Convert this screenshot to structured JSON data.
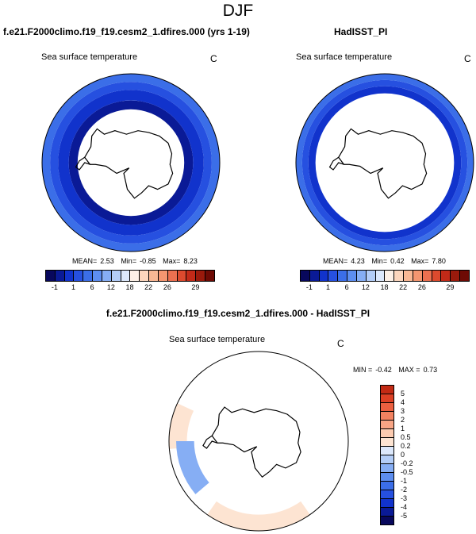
{
  "figure": {
    "season": "DJF",
    "model_title": "f.e21.F2000climo.f19_f19.cesm2_1.dfires.000 (yrs 1-19)",
    "obs_title": "HadISST_PI",
    "diff_title": "f.e21.F2000climo.f19_f19.cesm2_1.dfires.000 - HadISST_PI",
    "variable": "Sea surface temperature",
    "units": "C"
  },
  "stats": {
    "model": {
      "mean_label": "MEAN=",
      "mean": "2.53",
      "min_label": "Min=",
      "min": "-0.85",
      "max_label": "Max=",
      "max": "8.23"
    },
    "obs": {
      "mean_label": "MEAN=",
      "mean": "4.23",
      "min_label": "Min=",
      "min": "0.42",
      "max_label": "Max=",
      "max": "7.80"
    },
    "diff": {
      "min_label": "MIN =",
      "min": "-0.42",
      "max_label": "MAX =",
      "max": "0.73"
    }
  },
  "colors": {
    "abs": [
      "#08085c",
      "#0a1a96",
      "#1133cc",
      "#2650e0",
      "#3b6ee8",
      "#5d8ef0",
      "#86aef4",
      "#b3cdf7",
      "#dce8fb",
      "#fdf0e6",
      "#fcd6bd",
      "#f9b894",
      "#f49670",
      "#ec7050",
      "#dc4a2e",
      "#c22a18",
      "#9a1a0c",
      "#6e0a04"
    ],
    "diff": [
      "#08085c",
      "#0a1a96",
      "#1133cc",
      "#2650e0",
      "#3b6ee8",
      "#5d8ef0",
      "#86aef4",
      "#b3cdf7",
      "#dce8fb",
      "#fde4d2",
      "#fccbb0",
      "#f8a585",
      "#f38260",
      "#ec6040",
      "#dc4024",
      "#c22a14",
      "#9a180a",
      "#6e0a04"
    ]
  },
  "chart_data": [
    {
      "type": "heatmap",
      "panel": "model",
      "projection": "south-polar-stereographic",
      "title": "f.e21.F2000climo.f19_f19.cesm2_1.dfires.000 (yrs 1-19)",
      "variable": "Sea surface temperature",
      "units": "C",
      "mean": 2.53,
      "min": -0.85,
      "max": 8.23,
      "contour_levels": [
        -1,
        0,
        1,
        3,
        6,
        9,
        12,
        15,
        18,
        20,
        22,
        24,
        26,
        27,
        28,
        29
      ],
      "colorbar_tick_labels": [
        "-1",
        "1",
        "6",
        "12",
        "18",
        "22",
        "26",
        "29"
      ],
      "colorbar_ticks": [
        -1,
        1,
        6,
        12,
        18,
        22,
        26,
        29
      ],
      "rings": [
        {
          "name": "sea-ice-edge",
          "r_min": 0.6,
          "r_max": 0.7,
          "value": -0.5
        },
        {
          "name": "inner-ring",
          "r_min": 0.7,
          "r_max": 0.82,
          "value": 0.4
        },
        {
          "name": "middle-ring",
          "r_min": 0.82,
          "r_max": 0.91,
          "value": 2.0
        },
        {
          "name": "outer-ring",
          "r_min": 0.91,
          "r_max": 1.0,
          "value": 4.5
        }
      ]
    },
    {
      "type": "heatmap",
      "panel": "obs",
      "projection": "south-polar-stereographic",
      "title": "HadISST_PI",
      "variable": "Sea surface temperature",
      "units": "C",
      "mean": 4.23,
      "min": 0.42,
      "max": 7.8,
      "contour_levels": [
        -1,
        0,
        1,
        3,
        6,
        9,
        12,
        15,
        18,
        20,
        22,
        24,
        26,
        27,
        28,
        29
      ],
      "colorbar_tick_labels": [
        "-1",
        "1",
        "6",
        "12",
        "18",
        "22",
        "26",
        "29"
      ],
      "colorbar_ticks": [
        -1,
        1,
        6,
        12,
        18,
        22,
        26,
        29
      ],
      "rings": [
        {
          "name": "inner-ring",
          "r_min": 0.78,
          "r_max": 0.86,
          "value": 0.6
        },
        {
          "name": "middle-ring",
          "r_min": 0.86,
          "r_max": 0.93,
          "value": 2.0
        },
        {
          "name": "outer-ring",
          "r_min": 0.93,
          "r_max": 1.0,
          "value": 4.0
        }
      ]
    },
    {
      "type": "heatmap",
      "panel": "diff",
      "projection": "south-polar-stereographic",
      "title": "f.e21.F2000climo.f19_f19.cesm2_1.dfires.000 - HadISST_PI",
      "variable": "Sea surface temperature",
      "units": "C",
      "min": -0.42,
      "max": 0.73,
      "contour_levels": [
        -5,
        -4,
        -3,
        -2,
        -1,
        -0.5,
        -0.2,
        0,
        0.2,
        0.5,
        1,
        2,
        3,
        4,
        5
      ],
      "colorbar_tick_labels": [
        "5",
        "4",
        "3",
        "2",
        "1",
        "0.5",
        "0.2",
        "0",
        "-0.2",
        "-0.5",
        "-1",
        "-2",
        "-3",
        "-4",
        "-5"
      ],
      "colorbar_ticks": [
        5,
        4,
        3,
        2,
        1,
        0.5,
        0.2,
        0,
        -0.2,
        -0.5,
        -1,
        -2,
        -3,
        -4,
        -5
      ],
      "regions": [
        {
          "name": "drake-passage-warm",
          "value": 0.3
        },
        {
          "name": "south-atlantic-cool",
          "value": -0.3
        },
        {
          "name": "indian-ocean-warm-band",
          "value": 0.3
        }
      ]
    }
  ]
}
